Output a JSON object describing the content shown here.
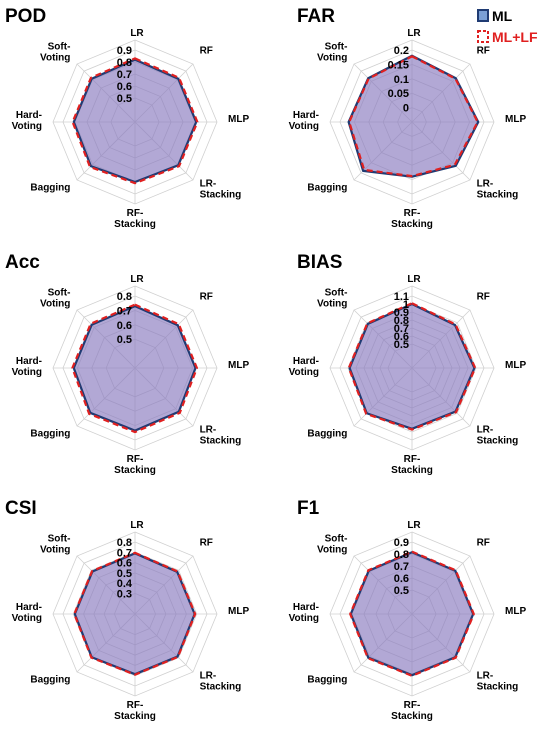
{
  "legend": {
    "items": [
      {
        "name": "ML",
        "stroke": "#1f3b73",
        "fill": "#7a9fd6",
        "text_color": "#000000"
      },
      {
        "name": "ML+LF",
        "stroke": "#e02020",
        "fill": "#ffffff",
        "text_color": "#e02020"
      }
    ]
  },
  "colors": {
    "grid": "#d0d0d0",
    "ml_line": "#1f3b73",
    "mllf_line": "#e02020",
    "area_fill": "#8a7cc0"
  },
  "chart_data": [
    {
      "type": "radar",
      "title": "POD",
      "axes": [
        {
          "name": "LR"
        },
        {
          "name": "RF"
        },
        {
          "name": "MLP"
        },
        {
          "name": "LR-",
          "name2": "Stacking"
        },
        {
          "name": "RF-",
          "name2": "Stacking"
        },
        {
          "name": "Bagging"
        },
        {
          "name": "Hard-",
          "name2": "Voting"
        },
        {
          "name": "Soft-",
          "name2": "Voting"
        }
      ],
      "r_range": [
        0.3,
        0.9
      ],
      "ticks": [
        {
          "v": 0.5,
          "label": "0.5"
        },
        {
          "v": 0.6,
          "label": "0.6"
        },
        {
          "v": 0.7,
          "label": "0.7"
        },
        {
          "v": 0.8,
          "label": "0.8"
        },
        {
          "v": 0.9,
          "label": "0.9"
        }
      ],
      "series": [
        {
          "name": "ML",
          "values": [
            0.82,
            0.81,
            0.81,
            0.81,
            0.8,
            0.82,
            0.81,
            0.81
          ]
        },
        {
          "name": "ML+LF",
          "values": [
            0.83,
            0.82,
            0.82,
            0.82,
            0.81,
            0.83,
            0.82,
            0.82
          ]
        }
      ]
    },
    {
      "type": "radar",
      "title": "FAR",
      "axes": [
        {
          "name": "LR"
        },
        {
          "name": "RF"
        },
        {
          "name": "MLP"
        },
        {
          "name": "LR-",
          "name2": "Stacking"
        },
        {
          "name": "RF-",
          "name2": "Stacking"
        },
        {
          "name": "Bagging"
        },
        {
          "name": "Hard-",
          "name2": "Voting"
        },
        {
          "name": "Soft-",
          "name2": "Voting"
        }
      ],
      "r_range": [
        -0.05,
        0.2
      ],
      "ticks": [
        {
          "v": 0,
          "label": "0"
        },
        {
          "v": 0.05,
          "label": "0.05"
        },
        {
          "v": 0.1,
          "label": "0.1"
        },
        {
          "v": 0.15,
          "label": "0.15"
        },
        {
          "v": 0.2,
          "label": "0.2"
        }
      ],
      "series": [
        {
          "name": "ML",
          "values": [
            0.18,
            0.165,
            0.18,
            0.165,
            0.14,
            0.19,
            0.17,
            0.165
          ]
        },
        {
          "name": "ML+LF",
          "values": [
            0.178,
            0.163,
            0.178,
            0.16,
            0.138,
            0.185,
            0.168,
            0.163
          ]
        }
      ]
    },
    {
      "type": "radar",
      "title": "Acc",
      "axes": [
        {
          "name": "LR"
        },
        {
          "name": "RF"
        },
        {
          "name": "MLP"
        },
        {
          "name": "LR-",
          "name2": "Stacking"
        },
        {
          "name": "RF-",
          "name2": "Stacking"
        },
        {
          "name": "Bagging"
        },
        {
          "name": "Hard-",
          "name2": "Voting"
        },
        {
          "name": "Soft-",
          "name2": "Voting"
        }
      ],
      "r_range": [
        0.3,
        0.8
      ],
      "ticks": [
        {
          "v": 0.5,
          "label": "0.5"
        },
        {
          "v": 0.6,
          "label": "0.6"
        },
        {
          "v": 0.7,
          "label": "0.7"
        },
        {
          "v": 0.8,
          "label": "0.8"
        }
      ],
      "series": [
        {
          "name": "ML",
          "values": [
            0.73,
            0.72,
            0.72,
            0.73,
            0.735,
            0.74,
            0.725,
            0.725
          ]
        },
        {
          "name": "ML+LF",
          "values": [
            0.74,
            0.73,
            0.73,
            0.74,
            0.745,
            0.75,
            0.735,
            0.735
          ]
        }
      ]
    },
    {
      "type": "radar",
      "title": "BIAS",
      "axes": [
        {
          "name": "LR"
        },
        {
          "name": "RF"
        },
        {
          "name": "MLP"
        },
        {
          "name": "LR-",
          "name2": "Stacking"
        },
        {
          "name": "RF-",
          "name2": "Stacking"
        },
        {
          "name": "Bagging"
        },
        {
          "name": "Hard-",
          "name2": "Voting"
        },
        {
          "name": "Soft-",
          "name2": "Voting"
        }
      ],
      "r_range": [
        0.2,
        1.1
      ],
      "ticks": [
        {
          "v": 0.5,
          "label": "0.5"
        },
        {
          "v": 0.6,
          "label": "0.6"
        },
        {
          "v": 0.7,
          "label": "0.7"
        },
        {
          "v": 0.8,
          "label": "0.8"
        },
        {
          "v": 0.9,
          "label": "0.9"
        },
        {
          "v": 1.0,
          "label": "1"
        },
        {
          "v": 1.1,
          "label": "1.1"
        }
      ],
      "series": [
        {
          "name": "ML",
          "values": [
            1.0,
            0.96,
            0.98,
            0.97,
            0.96,
            1.0,
            0.98,
            0.98
          ]
        },
        {
          "name": "ML+LF",
          "values": [
            1.01,
            0.97,
            0.99,
            0.98,
            0.97,
            1.01,
            0.99,
            0.99
          ]
        }
      ]
    },
    {
      "type": "radar",
      "title": "CSI",
      "axes": [
        {
          "name": "LR"
        },
        {
          "name": "RF"
        },
        {
          "name": "MLP"
        },
        {
          "name": "LR-",
          "name2": "Stacking"
        },
        {
          "name": "RF-",
          "name2": "Stacking"
        },
        {
          "name": "Bagging"
        },
        {
          "name": "Hard-",
          "name2": "Voting"
        },
        {
          "name": "Soft-",
          "name2": "Voting"
        }
      ],
      "r_range": [
        0.1,
        0.8
      ],
      "ticks": [
        {
          "v": 0.3,
          "label": "0.3"
        },
        {
          "v": 0.4,
          "label": "0.4"
        },
        {
          "v": 0.5,
          "label": "0.5"
        },
        {
          "v": 0.6,
          "label": "0.6"
        },
        {
          "v": 0.7,
          "label": "0.7"
        },
        {
          "v": 0.8,
          "label": "0.8"
        }
      ],
      "series": [
        {
          "name": "ML",
          "values": [
            0.69,
            0.68,
            0.68,
            0.685,
            0.685,
            0.695,
            0.685,
            0.685
          ]
        },
        {
          "name": "ML+LF",
          "values": [
            0.695,
            0.685,
            0.685,
            0.69,
            0.69,
            0.7,
            0.69,
            0.69
          ]
        }
      ]
    },
    {
      "type": "radar",
      "title": "F1",
      "axes": [
        {
          "name": "LR"
        },
        {
          "name": "RF"
        },
        {
          "name": "MLP"
        },
        {
          "name": "LR-",
          "name2": "Stacking"
        },
        {
          "name": "RF-",
          "name2": "Stacking"
        },
        {
          "name": "Bagging"
        },
        {
          "name": "Hard-",
          "name2": "Voting"
        },
        {
          "name": "Soft-",
          "name2": "Voting"
        }
      ],
      "r_range": [
        0.3,
        0.9
      ],
      "ticks": [
        {
          "v": 0.5,
          "label": "0.5"
        },
        {
          "v": 0.6,
          "label": "0.6"
        },
        {
          "v": 0.7,
          "label": "0.7"
        },
        {
          "v": 0.8,
          "label": "0.8"
        },
        {
          "v": 0.9,
          "label": "0.9"
        }
      ],
      "series": [
        {
          "name": "ML",
          "values": [
            0.815,
            0.81,
            0.81,
            0.81,
            0.81,
            0.815,
            0.81,
            0.81
          ]
        },
        {
          "name": "ML+LF",
          "values": [
            0.82,
            0.815,
            0.815,
            0.815,
            0.815,
            0.82,
            0.815,
            0.815
          ]
        }
      ]
    }
  ]
}
